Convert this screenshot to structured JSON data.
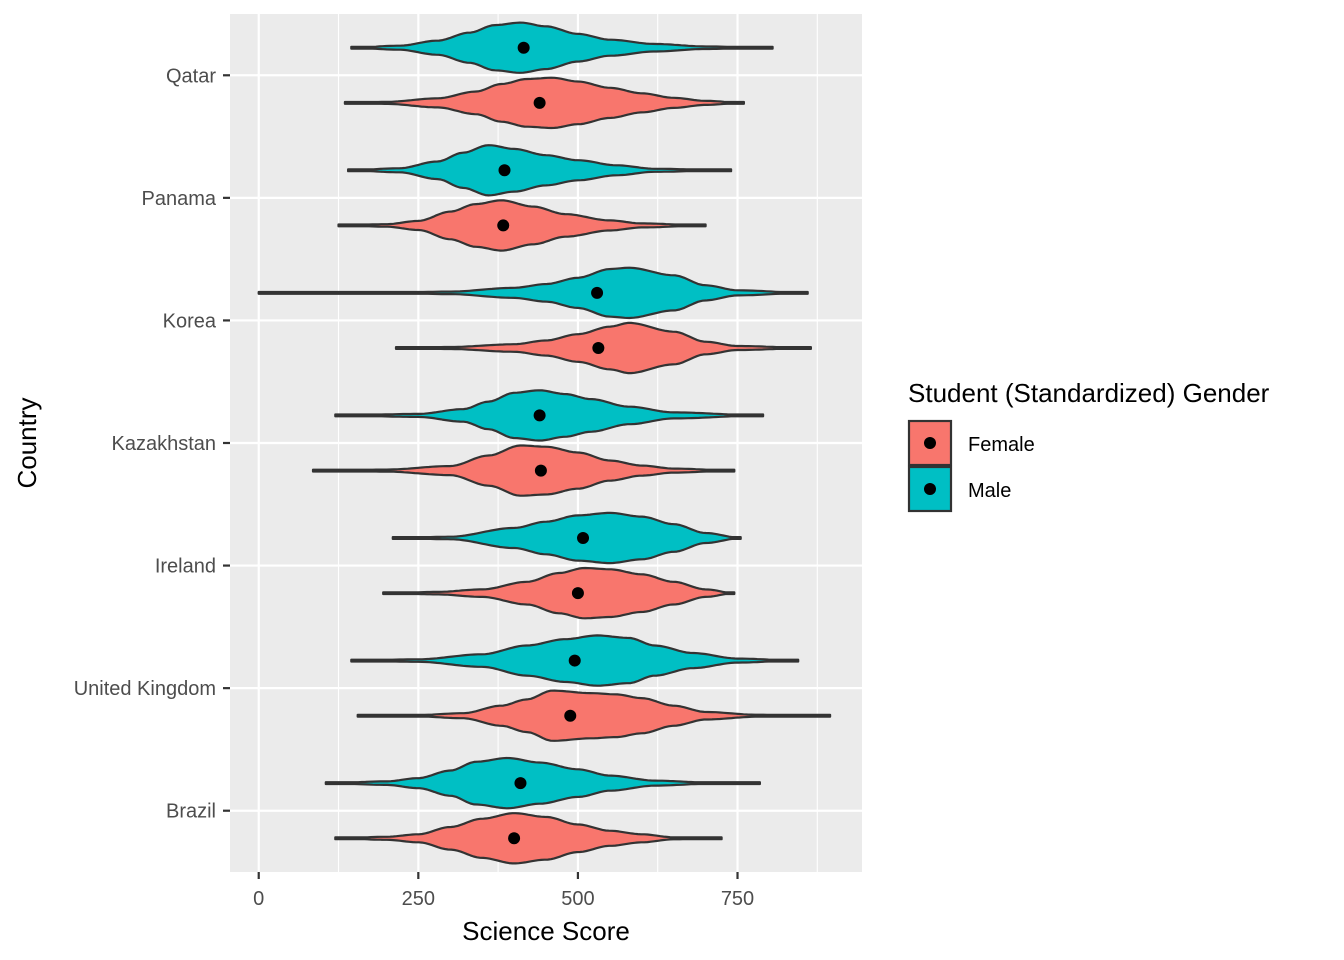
{
  "chart_data": {
    "type": "violin",
    "orientation": "horizontal",
    "title": "",
    "xlabel": "Science Score",
    "ylabel": "Country",
    "xlim": [
      -45,
      945
    ],
    "x_ticks": [
      0,
      250,
      500,
      750
    ],
    "x_tick_labels": [
      "0",
      "250",
      "500",
      "750"
    ],
    "categories": [
      "Brazil",
      "United Kingdom",
      "Ireland",
      "Kazakhstan",
      "Korea",
      "Panama",
      "Qatar"
    ],
    "grid": true,
    "legend": {
      "title": "Student (Standardized) Gender",
      "position": "right",
      "entries": [
        {
          "label": "Female",
          "color": "#F8766D"
        },
        {
          "label": "Male",
          "color": "#00BFC4"
        }
      ]
    },
    "series": [
      {
        "name": "Female",
        "color": "#F8766D",
        "groups": [
          {
            "category": "Brazil",
            "min": 120,
            "max": 725,
            "mean": 400,
            "profile": [
              [
                120,
                0.0
              ],
              [
                200,
                0.06
              ],
              [
                250,
                0.16
              ],
              [
                300,
                0.45
              ],
              [
                350,
                0.78
              ],
              [
                400,
                1.0
              ],
              [
                450,
                0.85
              ],
              [
                500,
                0.55
              ],
              [
                550,
                0.3
              ],
              [
                600,
                0.16
              ],
              [
                650,
                0.04
              ],
              [
                725,
                0.0
              ]
            ]
          },
          {
            "category": "United Kingdom",
            "min": 155,
            "max": 895,
            "mean": 488,
            "profile": [
              [
                155,
                0.0
              ],
              [
                250,
                0.03
              ],
              [
                320,
                0.1
              ],
              [
                380,
                0.4
              ],
              [
                420,
                0.65
              ],
              [
                460,
                1.0
              ],
              [
                520,
                0.9
              ],
              [
                560,
                0.85
              ],
              [
                600,
                0.7
              ],
              [
                650,
                0.4
              ],
              [
                700,
                0.15
              ],
              [
                780,
                0.04
              ],
              [
                895,
                0.0
              ]
            ]
          },
          {
            "category": "Ireland",
            "min": 195,
            "max": 745,
            "mean": 500,
            "profile": [
              [
                195,
                0.0
              ],
              [
                280,
                0.05
              ],
              [
                350,
                0.15
              ],
              [
                420,
                0.45
              ],
              [
                470,
                0.8
              ],
              [
                510,
                1.0
              ],
              [
                550,
                0.95
              ],
              [
                600,
                0.75
              ],
              [
                650,
                0.45
              ],
              [
                700,
                0.15
              ],
              [
                745,
                0.0
              ]
            ]
          },
          {
            "category": "Kazakhstan",
            "min": 85,
            "max": 745,
            "mean": 442,
            "profile": [
              [
                85,
                0.0
              ],
              [
                200,
                0.04
              ],
              [
                300,
                0.18
              ],
              [
                360,
                0.6
              ],
              [
                410,
                1.0
              ],
              [
                450,
                0.95
              ],
              [
                500,
                0.72
              ],
              [
                550,
                0.4
              ],
              [
                600,
                0.2
              ],
              [
                650,
                0.08
              ],
              [
                745,
                0.0
              ]
            ]
          },
          {
            "category": "Korea",
            "min": 215,
            "max": 865,
            "mean": 532,
            "profile": [
              [
                215,
                0.0
              ],
              [
                300,
                0.04
              ],
              [
                400,
                0.15
              ],
              [
                450,
                0.3
              ],
              [
                500,
                0.55
              ],
              [
                550,
                0.85
              ],
              [
                580,
                1.0
              ],
              [
                650,
                0.65
              ],
              [
                700,
                0.25
              ],
              [
                750,
                0.08
              ],
              [
                865,
                0.0
              ]
            ]
          },
          {
            "category": "Panama",
            "min": 125,
            "max": 700,
            "mean": 383,
            "profile": [
              [
                125,
                0.0
              ],
              [
                200,
                0.05
              ],
              [
                250,
                0.18
              ],
              [
                300,
                0.55
              ],
              [
                340,
                0.85
              ],
              [
                380,
                1.0
              ],
              [
                430,
                0.75
              ],
              [
                480,
                0.45
              ],
              [
                550,
                0.2
              ],
              [
                600,
                0.08
              ],
              [
                700,
                0.0
              ]
            ]
          },
          {
            "category": "Qatar",
            "min": 135,
            "max": 760,
            "mean": 440,
            "profile": [
              [
                135,
                0.0
              ],
              [
                200,
                0.04
              ],
              [
                280,
                0.18
              ],
              [
                340,
                0.45
              ],
              [
                380,
                0.75
              ],
              [
                420,
                0.95
              ],
              [
                460,
                1.0
              ],
              [
                500,
                0.85
              ],
              [
                550,
                0.6
              ],
              [
                600,
                0.38
              ],
              [
                650,
                0.2
              ],
              [
                700,
                0.08
              ],
              [
                760,
                0.0
              ]
            ]
          }
        ]
      },
      {
        "name": "Male",
        "color": "#00BFC4",
        "groups": [
          {
            "category": "Brazil",
            "min": 105,
            "max": 785,
            "mean": 410,
            "profile": [
              [
                105,
                0.0
              ],
              [
                200,
                0.07
              ],
              [
                250,
                0.2
              ],
              [
                300,
                0.5
              ],
              [
                340,
                0.85
              ],
              [
                390,
                1.0
              ],
              [
                440,
                0.82
              ],
              [
                500,
                0.55
              ],
              [
                550,
                0.3
              ],
              [
                620,
                0.1
              ],
              [
                700,
                0.03
              ],
              [
                785,
                0.0
              ]
            ]
          },
          {
            "category": "United Kingdom",
            "min": 145,
            "max": 845,
            "mean": 495,
            "profile": [
              [
                145,
                0.0
              ],
              [
                250,
                0.05
              ],
              [
                350,
                0.25
              ],
              [
                420,
                0.6
              ],
              [
                480,
                0.85
              ],
              [
                530,
                1.0
              ],
              [
                580,
                0.9
              ],
              [
                620,
                0.6
              ],
              [
                680,
                0.3
              ],
              [
                750,
                0.08
              ],
              [
                845,
                0.0
              ]
            ]
          },
          {
            "category": "Ireland",
            "min": 210,
            "max": 755,
            "mean": 508,
            "profile": [
              [
                210,
                0.0
              ],
              [
                300,
                0.05
              ],
              [
                400,
                0.4
              ],
              [
                450,
                0.65
              ],
              [
                500,
                0.9
              ],
              [
                550,
                1.0
              ],
              [
                600,
                0.85
              ],
              [
                650,
                0.55
              ],
              [
                700,
                0.2
              ],
              [
                755,
                0.0
              ]
            ]
          },
          {
            "category": "Kazakhstan",
            "min": 120,
            "max": 790,
            "mean": 440,
            "profile": [
              [
                120,
                0.0
              ],
              [
                250,
                0.06
              ],
              [
                320,
                0.25
              ],
              [
                360,
                0.55
              ],
              [
                400,
                0.9
              ],
              [
                440,
                1.0
              ],
              [
                480,
                0.85
              ],
              [
                520,
                0.65
              ],
              [
                580,
                0.35
              ],
              [
                650,
                0.12
              ],
              [
                790,
                0.0
              ]
            ]
          },
          {
            "category": "Korea",
            "min": 0,
            "max": 860,
            "mean": 530,
            "profile": [
              [
                0,
                0.0
              ],
              [
                200,
                0.01
              ],
              [
                300,
                0.05
              ],
              [
                400,
                0.2
              ],
              [
                450,
                0.35
              ],
              [
                500,
                0.6
              ],
              [
                550,
                0.95
              ],
              [
                580,
                1.0
              ],
              [
                650,
                0.7
              ],
              [
                700,
                0.3
              ],
              [
                750,
                0.1
              ],
              [
                860,
                0.0
              ]
            ]
          },
          {
            "category": "Panama",
            "min": 140,
            "max": 740,
            "mean": 385,
            "profile": [
              [
                140,
                0.0
              ],
              [
                220,
                0.08
              ],
              [
                280,
                0.35
              ],
              [
                320,
                0.7
              ],
              [
                360,
                1.0
              ],
              [
                400,
                0.85
              ],
              [
                450,
                0.6
              ],
              [
                500,
                0.4
              ],
              [
                560,
                0.2
              ],
              [
                620,
                0.06
              ],
              [
                740,
                0.0
              ]
            ]
          },
          {
            "category": "Qatar",
            "min": 145,
            "max": 805,
            "mean": 415,
            "profile": [
              [
                145,
                0.0
              ],
              [
                220,
                0.08
              ],
              [
                280,
                0.28
              ],
              [
                330,
                0.6
              ],
              [
                370,
                0.9
              ],
              [
                410,
                1.0
              ],
              [
                450,
                0.85
              ],
              [
                500,
                0.55
              ],
              [
                550,
                0.32
              ],
              [
                620,
                0.15
              ],
              [
                700,
                0.05
              ],
              [
                805,
                0.0
              ]
            ]
          }
        ]
      }
    ]
  }
}
